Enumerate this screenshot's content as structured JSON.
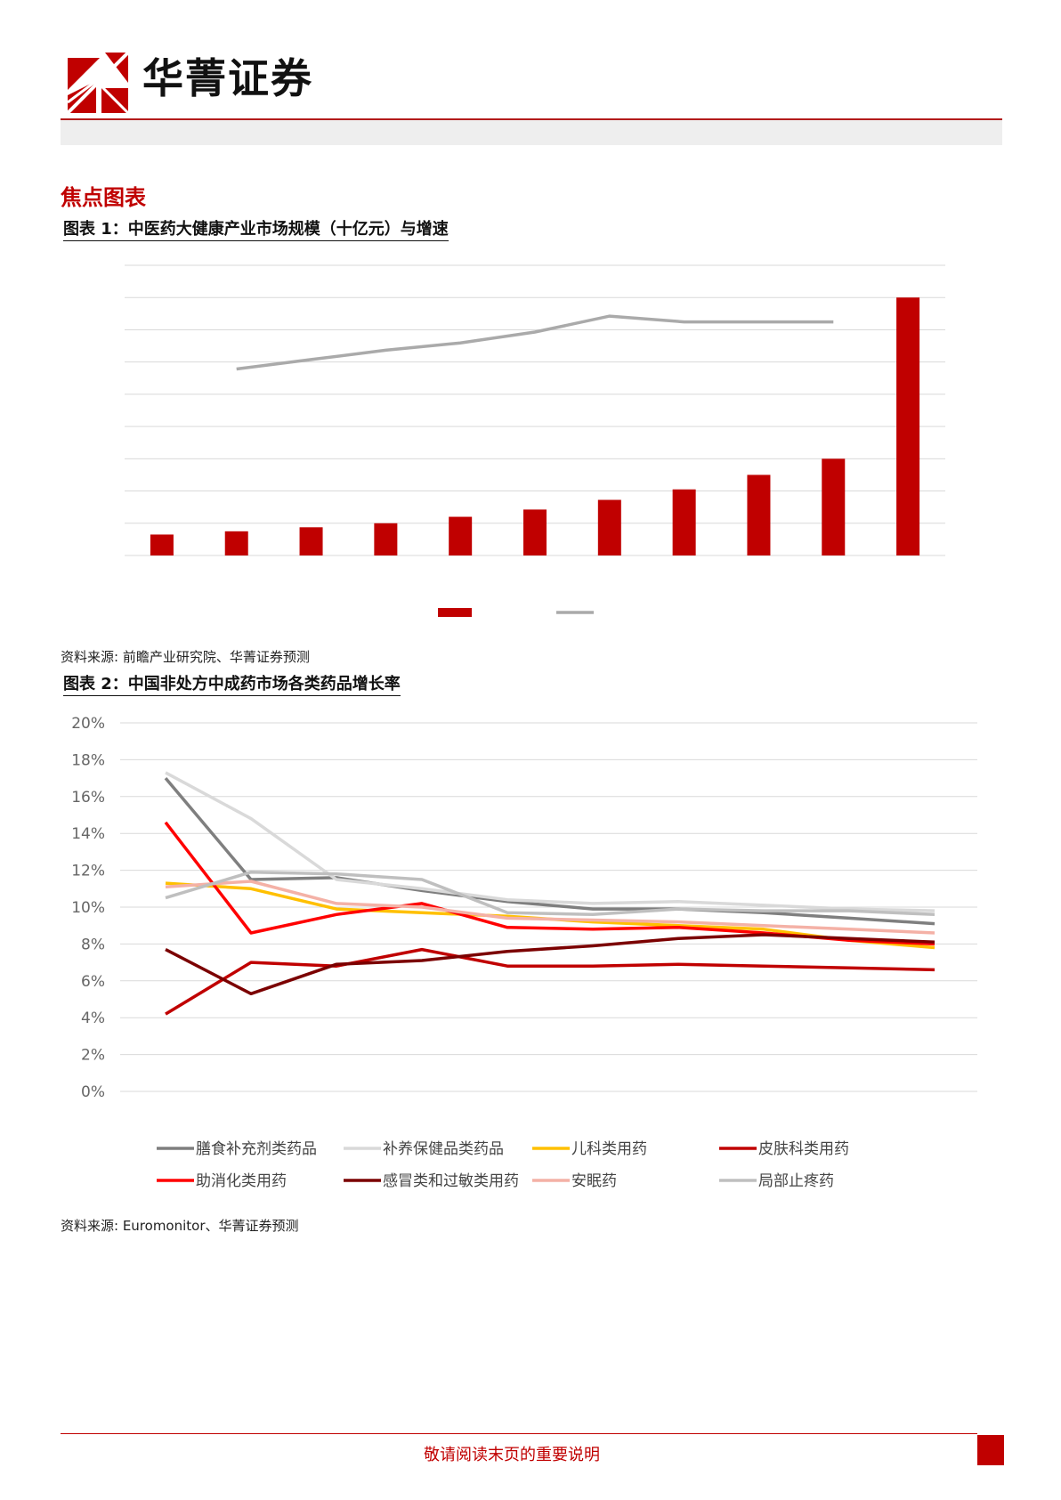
{
  "header": {
    "brand": "华菁证券",
    "brand_color": "#c00000",
    "logo_icon": "huajing-logo-icon"
  },
  "section_title": "焦点图表",
  "figure1": {
    "title": "图表 1：中医药大健康产业市场规模（十亿元）与增速",
    "source": "资料来源: 前瞻产业研究院、华菁证券预测"
  },
  "figure2": {
    "title": "图表 2：中国非处方中成药市场各类药品增长率",
    "source": "资料来源: Euromonitor、华菁证券预测"
  },
  "footer": {
    "text": "敬请阅读末页的重要说明"
  },
  "chart_data": [
    {
      "type": "bar",
      "title": "",
      "categories": [
        "",
        "",
        "",
        "",
        "",
        "",
        "",
        "",
        "",
        "",
        ""
      ],
      "series": [
        {
          "type": "bar",
          "color": "#c00000",
          "values": [
            13,
            15,
            17.5,
            20,
            24,
            28.5,
            34.5,
            41,
            50,
            60,
            160
          ]
        },
        {
          "type": "line",
          "color": "#aaaaaa",
          "values": [
            null,
            0.07,
            0.2,
            0.33,
            0.43,
            0.58,
            0.8,
            0.72,
            null,
            0.72,
            null
          ]
        }
      ],
      "ylim": [
        0,
        180
      ],
      "y2lim": [
        -2.5,
        1.5
      ],
      "grid": true,
      "axis_labels_shown": false,
      "legend_position": "bottom"
    },
    {
      "type": "line",
      "title": "",
      "categories": [
        "",
        "",
        "",
        "",
        "",
        "",
        "",
        "",
        "",
        ""
      ],
      "yticks": [
        "0%",
        "2%",
        "4%",
        "6%",
        "8%",
        "10%",
        "12%",
        "14%",
        "16%",
        "18%",
        "20%"
      ],
      "ylim": [
        0,
        20
      ],
      "grid": true,
      "legend_position": "bottom",
      "series": [
        {
          "name": "膳食补充剂类药品",
          "color": "#7f7f7f",
          "values": [
            17.0,
            11.5,
            11.6,
            10.9,
            10.3,
            9.9,
            9.9,
            9.7,
            9.4,
            9.1
          ]
        },
        {
          "name": "补养保健品类药品",
          "color": "#d9d9d9",
          "values": [
            17.3,
            14.8,
            11.5,
            11.0,
            10.4,
            10.2,
            10.3,
            10.1,
            9.9,
            9.8
          ]
        },
        {
          "name": "儿科类用药",
          "color": "#ffc000",
          "values": [
            11.3,
            11.0,
            9.9,
            9.7,
            9.5,
            9.2,
            9.0,
            8.8,
            8.2,
            7.8
          ]
        },
        {
          "name": "皮肤科类用药",
          "color": "#c00000",
          "values": [
            4.2,
            7.0,
            6.8,
            7.7,
            6.8,
            6.8,
            6.9,
            6.8,
            6.7,
            6.6
          ]
        },
        {
          "name": "助消化类用药",
          "color": "#ff0000",
          "values": [
            14.6,
            8.6,
            9.6,
            10.2,
            8.9,
            8.8,
            8.9,
            8.6,
            8.2,
            8.0
          ]
        },
        {
          "name": "感冒类和过敏类用药",
          "color": "#7b0000",
          "values": [
            7.7,
            5.3,
            6.9,
            7.1,
            7.6,
            7.9,
            8.3,
            8.5,
            8.3,
            8.1
          ]
        },
        {
          "name": "安眠药",
          "color": "#f4b1a6",
          "values": [
            11.1,
            11.4,
            10.2,
            10.0,
            9.4,
            9.3,
            9.2,
            9.0,
            8.8,
            8.6
          ]
        },
        {
          "name": "局部止疼药",
          "color": "#bfbfbf",
          "values": [
            10.5,
            11.9,
            11.8,
            11.5,
            9.7,
            9.6,
            9.9,
            9.8,
            9.8,
            9.6
          ]
        }
      ]
    }
  ]
}
